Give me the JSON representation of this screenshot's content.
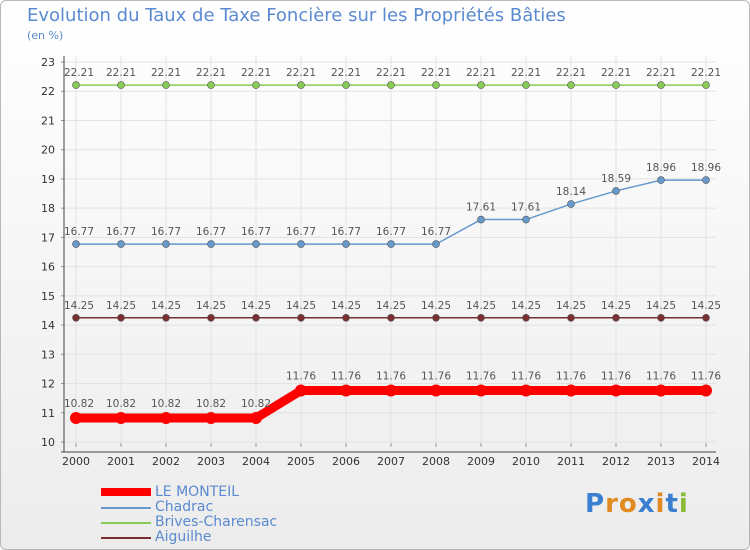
{
  "chart_data": {
    "type": "line",
    "title": "Evolution du Taux de Taxe Foncière sur les Propriétés Bâties",
    "ylabel": "(en %)",
    "xlabel": "",
    "x": [
      "2000",
      "2001",
      "2002",
      "2003",
      "2004",
      "2005",
      "2006",
      "2007",
      "2008",
      "2009",
      "2010",
      "2011",
      "2012",
      "2013",
      "2014"
    ],
    "ylim": [
      10,
      23
    ],
    "yticks": [
      "10",
      "11",
      "12",
      "13",
      "14",
      "15",
      "16",
      "17",
      "18",
      "19",
      "20",
      "21",
      "22",
      "23"
    ],
    "series": [
      {
        "name": "LE MONTEIL",
        "color": "#ff0000",
        "values": [
          10.82,
          10.82,
          10.82,
          10.82,
          10.82,
          11.76,
          11.76,
          11.76,
          11.76,
          11.76,
          11.76,
          11.76,
          11.76,
          11.76,
          11.76
        ],
        "labels": [
          "10.82",
          "10.82",
          "10.82",
          "10.82",
          "10.82",
          "11.76",
          "11.76",
          "11.76",
          "11.76",
          "11.76",
          "11.76",
          "11.76",
          "11.76",
          "11.76",
          "11.76"
        ]
      },
      {
        "name": "Chadrac",
        "color": "#6699cc",
        "values": [
          16.77,
          16.77,
          16.77,
          16.77,
          16.77,
          16.77,
          16.77,
          16.77,
          16.77,
          17.61,
          17.61,
          18.14,
          18.59,
          18.96,
          18.96
        ],
        "labels": [
          "16.77",
          "16.77",
          "16.77",
          "16.77",
          "16.77",
          "16.77",
          "16.77",
          "16.77",
          "16.77",
          "17.61",
          "17.61",
          "18.14",
          "18.59",
          "18.96",
          "18.96"
        ]
      },
      {
        "name": "Brives-Charensac",
        "color": "#88cc55",
        "values": [
          22.21,
          22.21,
          22.21,
          22.21,
          22.21,
          22.21,
          22.21,
          22.21,
          22.21,
          22.21,
          22.21,
          22.21,
          22.21,
          22.21,
          22.21
        ],
        "labels": [
          "22.21",
          "22.21",
          "22.21",
          "22.21",
          "22.21",
          "22.21",
          "22.21",
          "22.21",
          "22.21",
          "22.21",
          "22.21",
          "22.21",
          "22.21",
          "22.21",
          "22.21"
        ]
      },
      {
        "name": "Aiguilhe",
        "color": "#7a3030",
        "values": [
          14.25,
          14.25,
          14.25,
          14.25,
          14.25,
          14.25,
          14.25,
          14.25,
          14.25,
          14.25,
          14.25,
          14.25,
          14.25,
          14.25,
          14.25
        ],
        "labels": [
          "14.25",
          "14.25",
          "14.25",
          "14.25",
          "14.25",
          "14.25",
          "14.25",
          "14.25",
          "14.25",
          "14.25",
          "14.25",
          "14.25",
          "14.25",
          "14.25",
          "14.25"
        ]
      }
    ],
    "legend_position": "bottom-left"
  },
  "logo": {
    "letters": [
      "P",
      "r",
      "o",
      "x",
      "i",
      "t",
      "i"
    ],
    "colors": [
      "#3a7fd0",
      "#e08a20",
      "#e08a20",
      "#3a7fd0",
      "#e08a20",
      "#3a7fd0",
      "#88bb33"
    ]
  }
}
